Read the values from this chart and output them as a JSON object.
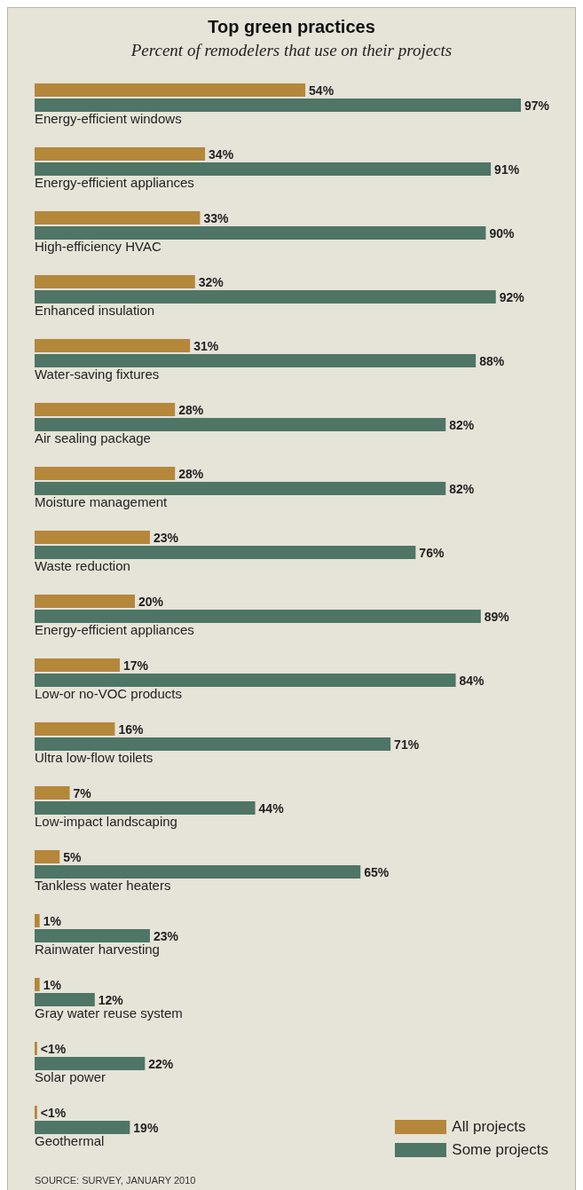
{
  "chart_data": {
    "type": "bar",
    "orientation": "horizontal",
    "title": "Top green practices",
    "subtitle": "Percent of remodelers that use on their projects",
    "categories": [
      "Energy-efficient windows",
      "Energy-efficient appliances",
      "High-efficiency HVAC",
      "Enhanced insulation",
      "Water-saving fixtures",
      "Air sealing package",
      "Moisture management",
      "Waste reduction",
      "Energy-efficient appliances",
      "Low-or no-VOC products",
      "Ultra low-flow toilets",
      "Low-impact landscaping",
      "Tankless water heaters",
      "Rainwater harvesting",
      "Gray water reuse system",
      "Solar power",
      "Geothermal"
    ],
    "series": [
      {
        "name": "All projects",
        "color": "#b5873a",
        "values": [
          54,
          34,
          33,
          32,
          31,
          28,
          28,
          23,
          20,
          17,
          16,
          7,
          5,
          1,
          1,
          0.5,
          0.5
        ],
        "value_labels": [
          "54%",
          "34%",
          "33%",
          "32%",
          "31%",
          "28%",
          "28%",
          "23%",
          "20%",
          "17%",
          "16%",
          "7%",
          "5%",
          "1%",
          "1%",
          "<1%",
          "<1%"
        ]
      },
      {
        "name": "Some projects",
        "color": "#4e7566",
        "values": [
          97,
          91,
          90,
          92,
          88,
          82,
          82,
          76,
          89,
          84,
          71,
          44,
          65,
          23,
          12,
          22,
          19
        ],
        "value_labels": [
          "97%",
          "91%",
          "90%",
          "92%",
          "88%",
          "82%",
          "82%",
          "76%",
          "89%",
          "84%",
          "71%",
          "44%",
          "65%",
          "23%",
          "12%",
          "22%",
          "19%"
        ]
      }
    ],
    "legend": "bottom right",
    "annotations": [
      "SOURCE: SURVEY, JANUARY 2010"
    ]
  }
}
